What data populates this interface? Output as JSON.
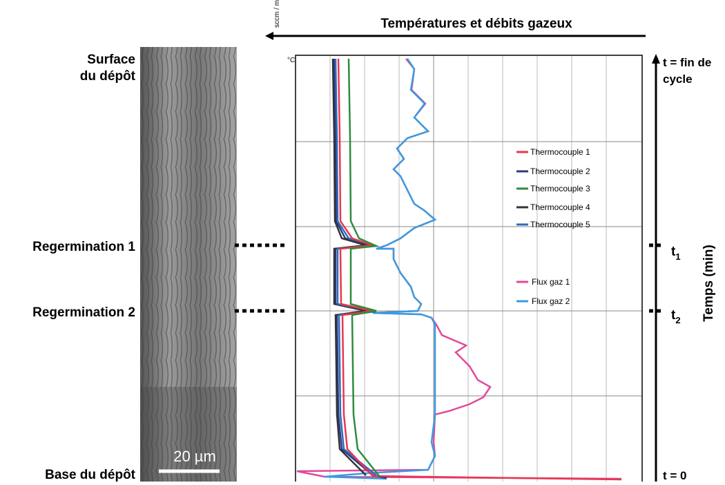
{
  "header": {
    "title": "Températures et débits gazeux",
    "left_unit": "sccm / min.",
    "right_unit": "°C"
  },
  "sample_labels": [
    "Surface du dépôt",
    "Regermination 1",
    "Regermination 2",
    "Base du dépôt"
  ],
  "scale_bar": "20 µm",
  "time_axis": {
    "label": "Temps (min)",
    "end": "t = fin de cycle",
    "start": "t = 0",
    "markers": [
      {
        "label": "t",
        "subscript": "1"
      },
      {
        "label": "t",
        "subscript": "2"
      }
    ]
  },
  "legend": [
    "Thermocouple 1",
    "Thermocouple 2",
    "Thermocouple 3",
    "Thermocouple 4",
    "Thermocouple 5",
    "Flux gaz 1",
    "Flux gaz 2"
  ]
}
